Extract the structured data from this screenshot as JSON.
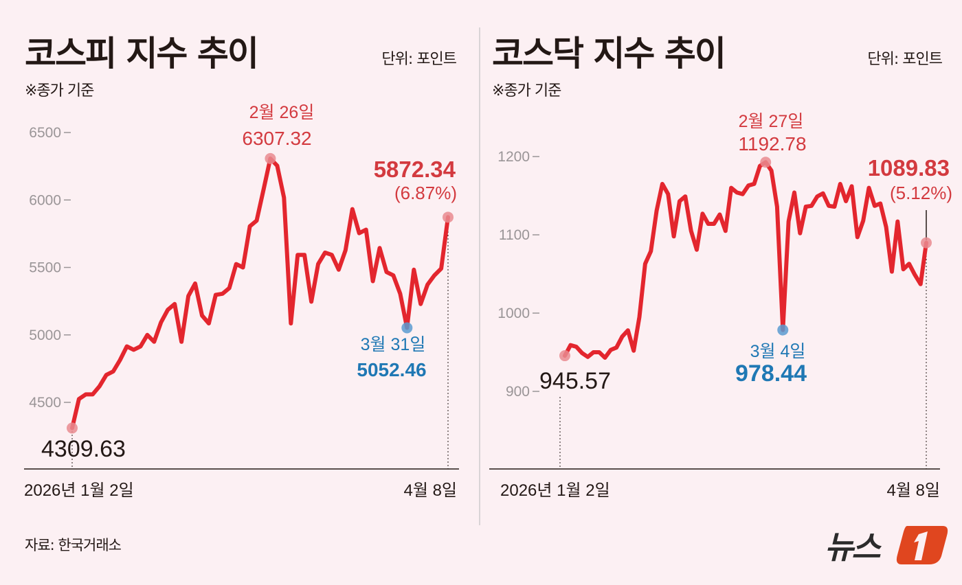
{
  "source": "자료: 한국거래소",
  "logo_text": "뉴스1",
  "colors": {
    "background": "#fcf0f3",
    "line": "#e3262e",
    "high_label": "#d33a3f",
    "low_label": "#1f78b4",
    "marker_red": "#e98b8f",
    "marker_blue": "#5a9bd0"
  },
  "chart_data": [
    {
      "type": "line",
      "title": "코스피 지수 추이",
      "unit": "단위: 포인트",
      "note": "※종가 기준",
      "x_start_label": "2026년 1월 2일",
      "x_end_label": "4월 8일",
      "ylim": [
        4000,
        6600
      ],
      "yticks": [
        4500,
        5000,
        5500,
        6000,
        6500
      ],
      "ytick_labels": [
        "4500",
        "5000",
        "5500",
        "6000",
        "6500"
      ],
      "grid": false,
      "series": [
        {
          "values": [
            4309.63,
            4525,
            4559,
            4559,
            4619,
            4703,
            4729,
            4813,
            4915,
            4890,
            4915,
            5000,
            4949,
            5093,
            5186,
            5229,
            4949,
            5288,
            5381,
            5144,
            5085,
            5297,
            5305,
            5347,
            5525,
            5500,
            5805,
            5847,
            6076,
            6307.32,
            6254,
            6017,
            5085,
            5593,
            5593,
            5246,
            5525,
            5610,
            5593,
            5483,
            5627,
            5932,
            5754,
            5780,
            5398,
            5644,
            5466,
            5441,
            5305,
            5052.46,
            5483,
            5229,
            5373,
            5441,
            5492,
            5872.34
          ]
        }
      ],
      "annotations": {
        "start": {
          "value": "4309.63"
        },
        "high": {
          "date": "2월 26일",
          "value": "6307.32"
        },
        "low": {
          "date": "3월 31일",
          "value": "5052.46"
        },
        "end": {
          "value": "5872.34",
          "change": "(6.87%)"
        }
      }
    },
    {
      "type": "line",
      "title": "코스닥 지수 추이",
      "unit": "단위: 포인트",
      "note": "※종가 기준",
      "x_start_label": "2026년 1월 2일",
      "x_end_label": "4월 8일",
      "ylim": [
        800,
        1250
      ],
      "yticks": [
        900,
        1000,
        1100,
        1200
      ],
      "ytick_labels": [
        "900",
        "1000",
        "1100",
        "1200"
      ],
      "grid": false,
      "series": [
        {
          "values": [
            945.57,
            959,
            957,
            949,
            944,
            950,
            950,
            943,
            953,
            956,
            970,
            978,
            952,
            995,
            1063,
            1079,
            1131,
            1165,
            1152,
            1098,
            1143,
            1149,
            1105,
            1081,
            1127,
            1114,
            1114,
            1126,
            1105,
            1160,
            1154,
            1152,
            1163,
            1165,
            1188,
            1192.78,
            1182,
            1136,
            978.44,
            1117,
            1154,
            1102,
            1136,
            1137,
            1149,
            1153,
            1137,
            1136,
            1165,
            1143,
            1162,
            1097,
            1118,
            1160,
            1137,
            1140,
            1110,
            1053,
            1117,
            1056,
            1063,
            1049,
            1037,
            1089.83
          ]
        }
      ],
      "annotations": {
        "start": {
          "value": "945.57"
        },
        "high": {
          "date": "2월 27일",
          "value": "1192.78"
        },
        "low": {
          "date": "3월 4일",
          "value": "978.44"
        },
        "end": {
          "value": "1089.83",
          "change": "(5.12%)"
        }
      }
    }
  ]
}
